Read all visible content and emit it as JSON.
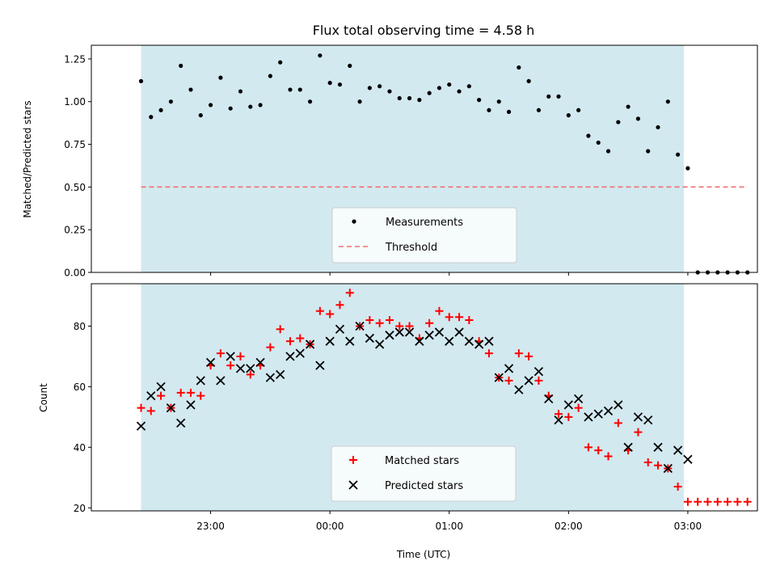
{
  "chart_data": [
    {
      "type": "scatter",
      "title": "Flux total observing time = 4.58 h",
      "xlabel": "",
      "ylabel": "Matched/Predicted stars",
      "ylim": [
        0,
        1.33
      ],
      "yticks": [
        "0.00",
        "0.25",
        "0.50",
        "0.75",
        "1.00",
        "1.25"
      ],
      "ytick_values": [
        0,
        0.25,
        0.5,
        0.75,
        1.0,
        1.25
      ],
      "observing_window": {
        "start": "22:25",
        "end": "02:58",
        "color": "#d3e9f0"
      },
      "threshold": {
        "name": "Threshold",
        "value": 0.5,
        "x_start": "22:25",
        "x_end": "03:30",
        "color": "#f07070"
      },
      "legend": {
        "position": "bottom-center",
        "entries": [
          "Measurements",
          "Threshold"
        ]
      },
      "series": [
        {
          "name": "Measurements",
          "marker": "dot",
          "color": "#000000",
          "points": [
            [
              "22:25",
              1.12
            ],
            [
              "22:30",
              0.91
            ],
            [
              "22:35",
              0.95
            ],
            [
              "22:40",
              1.0
            ],
            [
              "22:45",
              1.21
            ],
            [
              "22:50",
              1.07
            ],
            [
              "22:55",
              0.92
            ],
            [
              "23:00",
              0.98
            ],
            [
              "23:05",
              1.14
            ],
            [
              "23:10",
              0.96
            ],
            [
              "23:15",
              1.06
            ],
            [
              "23:20",
              0.97
            ],
            [
              "23:25",
              0.98
            ],
            [
              "23:30",
              1.15
            ],
            [
              "23:35",
              1.23
            ],
            [
              "23:40",
              1.07
            ],
            [
              "23:45",
              1.07
            ],
            [
              "23:50",
              1.0
            ],
            [
              "23:55",
              1.27
            ],
            [
              "00:00",
              1.11
            ],
            [
              "00:05",
              1.1
            ],
            [
              "00:10",
              1.21
            ],
            [
              "00:15",
              1.0
            ],
            [
              "00:20",
              1.08
            ],
            [
              "00:25",
              1.09
            ],
            [
              "00:30",
              1.06
            ],
            [
              "00:35",
              1.02
            ],
            [
              "00:40",
              1.02
            ],
            [
              "00:45",
              1.01
            ],
            [
              "00:50",
              1.05
            ],
            [
              "00:55",
              1.08
            ],
            [
              "01:00",
              1.1
            ],
            [
              "01:05",
              1.06
            ],
            [
              "01:10",
              1.09
            ],
            [
              "01:15",
              1.01
            ],
            [
              "01:20",
              0.95
            ],
            [
              "01:25",
              1.0
            ],
            [
              "01:30",
              0.94
            ],
            [
              "01:35",
              1.2
            ],
            [
              "01:40",
              1.12
            ],
            [
              "01:45",
              0.95
            ],
            [
              "01:50",
              1.03
            ],
            [
              "01:55",
              1.03
            ],
            [
              "02:00",
              0.92
            ],
            [
              "02:05",
              0.95
            ],
            [
              "02:10",
              0.8
            ],
            [
              "02:15",
              0.76
            ],
            [
              "02:20",
              0.71
            ],
            [
              "02:25",
              0.88
            ],
            [
              "02:30",
              0.97
            ],
            [
              "02:35",
              0.9
            ],
            [
              "02:40",
              0.71
            ],
            [
              "02:45",
              0.85
            ],
            [
              "02:50",
              1.0
            ],
            [
              "02:55",
              0.69
            ],
            [
              "03:00",
              0.61
            ],
            [
              "03:05",
              0.0
            ],
            [
              "03:10",
              0.0
            ],
            [
              "03:15",
              0.0
            ],
            [
              "03:20",
              0.0
            ],
            [
              "03:25",
              0.0
            ],
            [
              "03:30",
              0.0
            ]
          ]
        }
      ]
    },
    {
      "type": "scatter",
      "title": "",
      "xlabel": "Time (UTC)",
      "ylabel": "Count",
      "ylim": [
        19,
        94
      ],
      "yticks": [
        "20",
        "40",
        "60",
        "80"
      ],
      "ytick_values": [
        20,
        40,
        60,
        80
      ],
      "xticks": [
        "23:00",
        "00:00",
        "01:00",
        "02:00",
        "03:00"
      ],
      "observing_window": {
        "start": "22:25",
        "end": "02:58",
        "color": "#d3e9f0"
      },
      "legend": {
        "position": "bottom-center",
        "entries": [
          "Matched stars",
          "Predicted stars"
        ]
      },
      "series": [
        {
          "name": "Matched stars",
          "marker": "plus",
          "color": "#ff0000",
          "points": [
            [
              "22:25",
              53
            ],
            [
              "22:30",
              52
            ],
            [
              "22:35",
              57
            ],
            [
              "22:40",
              53
            ],
            [
              "22:45",
              58
            ],
            [
              "22:50",
              58
            ],
            [
              "22:55",
              57
            ],
            [
              "23:00",
              67
            ],
            [
              "23:05",
              71
            ],
            [
              "23:10",
              67
            ],
            [
              "23:15",
              70
            ],
            [
              "23:20",
              64
            ],
            [
              "23:25",
              67
            ],
            [
              "23:30",
              73
            ],
            [
              "23:35",
              79
            ],
            [
              "23:40",
              75
            ],
            [
              "23:45",
              76
            ],
            [
              "23:50",
              74
            ],
            [
              "23:55",
              85
            ],
            [
              "00:00",
              84
            ],
            [
              "00:05",
              87
            ],
            [
              "00:10",
              91
            ],
            [
              "00:15",
              80
            ],
            [
              "00:20",
              82
            ],
            [
              "00:25",
              81
            ],
            [
              "00:30",
              82
            ],
            [
              "00:35",
              80
            ],
            [
              "00:40",
              80
            ],
            [
              "00:45",
              76
            ],
            [
              "00:50",
              81
            ],
            [
              "00:55",
              85
            ],
            [
              "01:00",
              83
            ],
            [
              "01:05",
              83
            ],
            [
              "01:10",
              82
            ],
            [
              "01:15",
              75
            ],
            [
              "01:20",
              71
            ],
            [
              "01:25",
              63
            ],
            [
              "01:30",
              62
            ],
            [
              "01:35",
              71
            ],
            [
              "01:40",
              70
            ],
            [
              "01:45",
              62
            ],
            [
              "01:50",
              57
            ],
            [
              "01:55",
              51
            ],
            [
              "02:00",
              50
            ],
            [
              "02:05",
              53
            ],
            [
              "02:10",
              40
            ],
            [
              "02:15",
              39
            ],
            [
              "02:20",
              37
            ],
            [
              "02:25",
              48
            ],
            [
              "02:30",
              39
            ],
            [
              "02:35",
              45
            ],
            [
              "02:40",
              35
            ],
            [
              "02:45",
              34
            ],
            [
              "02:50",
              33
            ],
            [
              "02:55",
              27
            ],
            [
              "03:00",
              22
            ],
            [
              "03:05",
              22
            ],
            [
              "03:10",
              22
            ],
            [
              "03:15",
              22
            ],
            [
              "03:20",
              22
            ],
            [
              "03:25",
              22
            ],
            [
              "03:30",
              22
            ]
          ]
        },
        {
          "name": "Predicted stars",
          "marker": "x",
          "color": "#000000",
          "points": [
            [
              "22:25",
              47
            ],
            [
              "22:30",
              57
            ],
            [
              "22:35",
              60
            ],
            [
              "22:40",
              53
            ],
            [
              "22:45",
              48
            ],
            [
              "22:50",
              54
            ],
            [
              "22:55",
              62
            ],
            [
              "23:00",
              68
            ],
            [
              "23:05",
              62
            ],
            [
              "23:10",
              70
            ],
            [
              "23:15",
              66
            ],
            [
              "23:20",
              66
            ],
            [
              "23:25",
              68
            ],
            [
              "23:30",
              63
            ],
            [
              "23:35",
              64
            ],
            [
              "23:40",
              70
            ],
            [
              "23:45",
              71
            ],
            [
              "23:50",
              74
            ],
            [
              "23:55",
              67
            ],
            [
              "00:00",
              75
            ],
            [
              "00:05",
              79
            ],
            [
              "00:10",
              75
            ],
            [
              "00:15",
              80
            ],
            [
              "00:20",
              76
            ],
            [
              "00:25",
              74
            ],
            [
              "00:30",
              77
            ],
            [
              "00:35",
              78
            ],
            [
              "00:40",
              78
            ],
            [
              "00:45",
              75
            ],
            [
              "00:50",
              77
            ],
            [
              "00:55",
              78
            ],
            [
              "01:00",
              75
            ],
            [
              "01:05",
              78
            ],
            [
              "01:10",
              75
            ],
            [
              "01:15",
              74
            ],
            [
              "01:20",
              75
            ],
            [
              "01:25",
              63
            ],
            [
              "01:30",
              66
            ],
            [
              "01:35",
              59
            ],
            [
              "01:40",
              62
            ],
            [
              "01:45",
              65
            ],
            [
              "01:50",
              56
            ],
            [
              "01:55",
              49
            ],
            [
              "02:00",
              54
            ],
            [
              "02:05",
              56
            ],
            [
              "02:10",
              50
            ],
            [
              "02:15",
              51
            ],
            [
              "02:20",
              52
            ],
            [
              "02:25",
              54
            ],
            [
              "02:30",
              40
            ],
            [
              "02:35",
              50
            ],
            [
              "02:40",
              49
            ],
            [
              "02:45",
              40
            ],
            [
              "02:50",
              33
            ],
            [
              "02:55",
              39
            ],
            [
              "03:00",
              36
            ]
          ]
        }
      ]
    }
  ]
}
